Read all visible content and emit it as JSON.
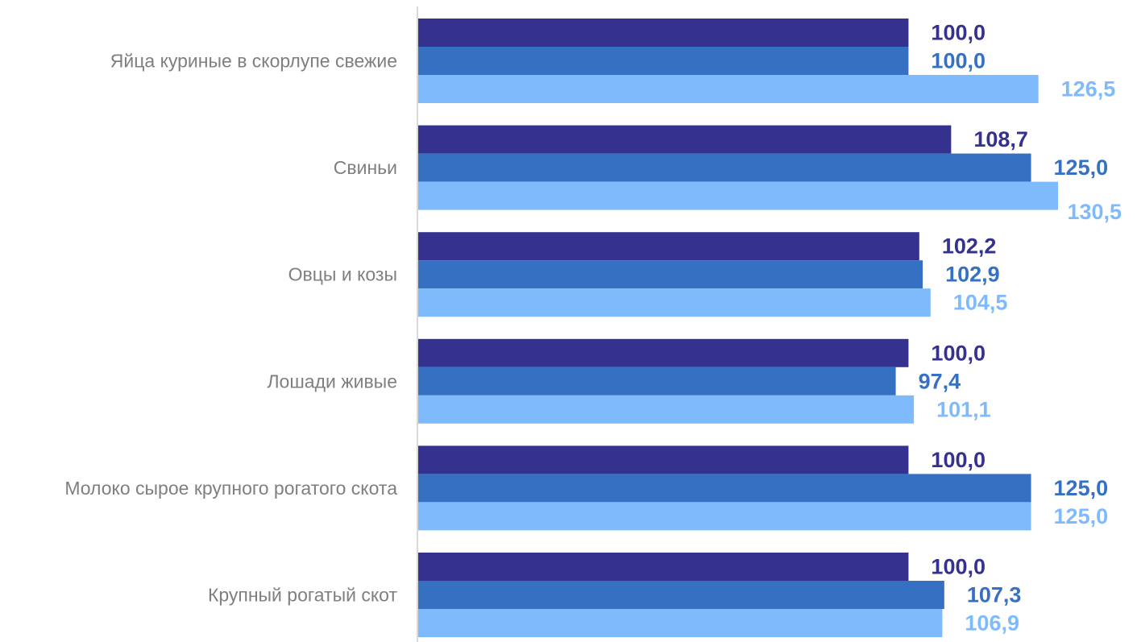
{
  "chart_data": {
    "type": "bar",
    "orientation": "horizontal",
    "categories": [
      "Яйца куриные в скорлупе свежие",
      "Свиньи",
      "Овцы и козы",
      "Лошади живые",
      "Молоко сырое крупного рогатого скота",
      "Крупный рогатый скот"
    ],
    "series": [
      {
        "color": "#35318f",
        "values": [
          100.0,
          108.7,
          102.2,
          100.0,
          100.0,
          100.0
        ],
        "labels": [
          "100,0",
          "108,7",
          "102,2",
          "100,0",
          "100,0",
          "100,0"
        ]
      },
      {
        "color": "#3570c2",
        "values": [
          100.0,
          125.0,
          102.9,
          97.4,
          125.0,
          107.3
        ],
        "labels": [
          "100,0",
          "125,0",
          "102,9",
          "97,4",
          "125,0",
          "107,3"
        ]
      },
      {
        "color": "#7fbbfc",
        "values": [
          126.5,
          130.5,
          104.5,
          101.1,
          125.0,
          106.9
        ],
        "labels": [
          "126,5",
          "130,5",
          "104,5",
          "101,1",
          "125,0",
          "106,9"
        ]
      }
    ],
    "xlim": [
      0,
      130.5
    ],
    "grid": false,
    "legend": "none",
    "title": "",
    "xlabel": "",
    "ylabel": ""
  }
}
